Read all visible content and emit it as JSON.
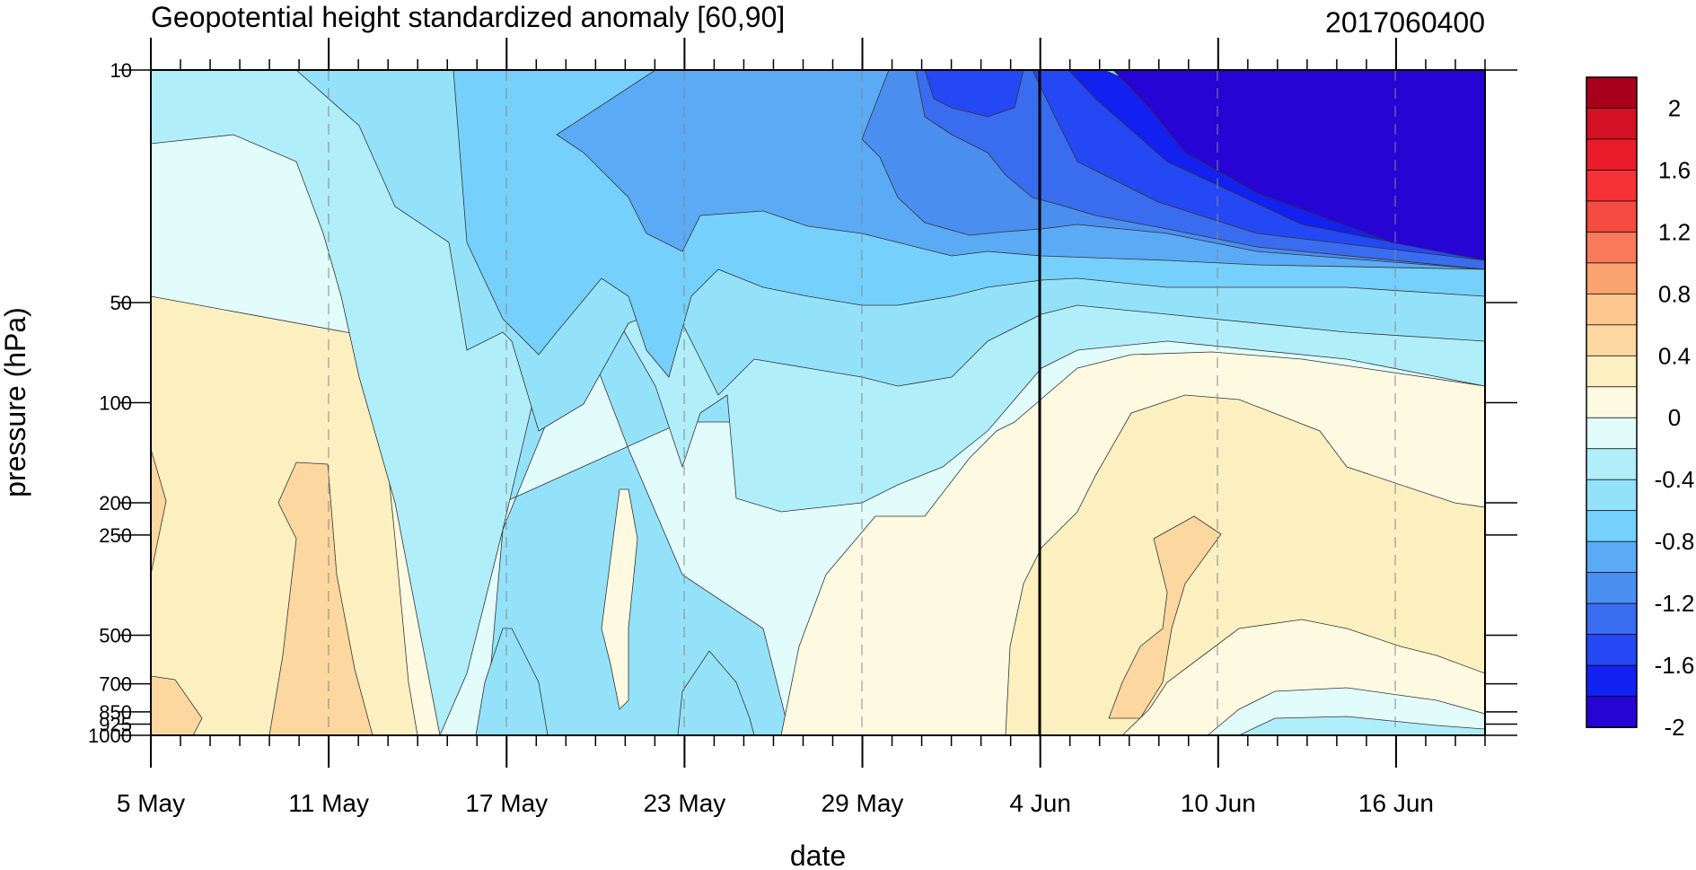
{
  "chart_data": {
    "type": "heatmap",
    "title_left": "Geopotential height standardized anomaly [60,90]",
    "title_right": "2017060400",
    "xlabel": "date",
    "ylabel": "pressure (hPa)",
    "x_start": "2017-05-05",
    "x_end": "2017-06-19",
    "x_ticks": [
      {
        "date": "2017-05-05",
        "label": "5 May"
      },
      {
        "date": "2017-05-11",
        "label": "11 May"
      },
      {
        "date": "2017-05-17",
        "label": "17 May"
      },
      {
        "date": "2017-05-23",
        "label": "23 May"
      },
      {
        "date": "2017-05-29",
        "label": "29 May"
      },
      {
        "date": "2017-06-04",
        "label": "4 Jun"
      },
      {
        "date": "2017-06-10",
        "label": "10 Jun"
      },
      {
        "date": "2017-06-16",
        "label": "16 Jun"
      }
    ],
    "y_scale": "log",
    "ylim": [
      1000,
      10
    ],
    "y_ticks": [
      {
        "value": 10,
        "label": "10"
      },
      {
        "value": 50,
        "label": "50"
      },
      {
        "value": 100,
        "label": "100"
      },
      {
        "value": 200,
        "label": "200"
      },
      {
        "value": 250,
        "label": "250"
      },
      {
        "value": 500,
        "label": "500"
      },
      {
        "value": 700,
        "label": "700"
      },
      {
        "value": 850,
        "label": "850"
      },
      {
        "value": 925,
        "label": "925"
      },
      {
        "value": 1000,
        "label": "1000"
      }
    ],
    "initialization_date": "2017-06-04",
    "colorbar": {
      "levels": [
        -2.2,
        -2.0,
        -1.8,
        -1.6,
        -1.4,
        -1.2,
        -1.0,
        -0.8,
        -0.6,
        -0.4,
        -0.2,
        0,
        0.2,
        0.4,
        0.6,
        0.8,
        1.0,
        1.2,
        1.4,
        1.6,
        1.8,
        2.0
      ],
      "colors": [
        "#2604d4",
        "#1220f0",
        "#2448f4",
        "#3a6cf0",
        "#4a8ef0",
        "#5aaaf6",
        "#76d0fc",
        "#94e2fa",
        "#b0eefa",
        "#e2fcfc",
        "#fefae2",
        "#fcf0c0",
        "#fcd8a0",
        "#fcc890",
        "#fca470",
        "#fa7a5c",
        "#f44c40",
        "#f43236",
        "#ea1c2c",
        "#d41024",
        "#a8001c"
      ],
      "labels": [
        "2",
        "1.6",
        "1.2",
        "0.8",
        "0.4",
        "0",
        "-0.4",
        "-0.8",
        "-1.2",
        "-1.6",
        "-2"
      ]
    },
    "grid": false
  }
}
